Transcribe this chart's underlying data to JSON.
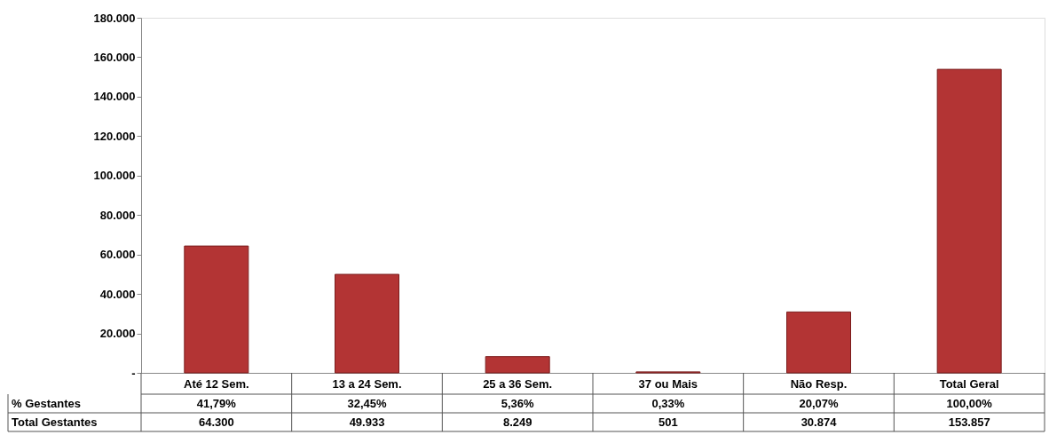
{
  "chart_data": {
    "type": "bar",
    "categories": [
      "Até 12 Sem.",
      "13 a 24 Sem.",
      "25 a 36 Sem.",
      "37 ou Mais",
      "Não Resp.",
      "Total Geral"
    ],
    "series": [
      {
        "name": "Total Gestantes",
        "color": "#b33434",
        "values": [
          64300,
          49933,
          8249,
          501,
          30874,
          153857
        ],
        "value_labels": [
          "64.300",
          "49.933",
          "8.249",
          "501",
          "30.874",
          "153.857"
        ]
      }
    ],
    "annotations": [
      "% Gestantes",
      "41,79%",
      "32,45%",
      "5,36%",
      "0,33%",
      "20,07%",
      "100,00%"
    ],
    "ylim": [
      0,
      180000
    ],
    "yticks": [
      {
        "value": 0,
        "label": "-"
      },
      {
        "value": 20000,
        "label": "20.000"
      },
      {
        "value": 40000,
        "label": "40.000"
      },
      {
        "value": 60000,
        "label": "60.000"
      },
      {
        "value": 80000,
        "label": "80.000"
      },
      {
        "value": 100000,
        "label": "100.000"
      },
      {
        "value": 120000,
        "label": "120.000"
      },
      {
        "value": 140000,
        "label": "140.000"
      },
      {
        "value": 160000,
        "label": "160.000"
      },
      {
        "value": 180000,
        "label": "180.000"
      }
    ],
    "grid": false
  }
}
